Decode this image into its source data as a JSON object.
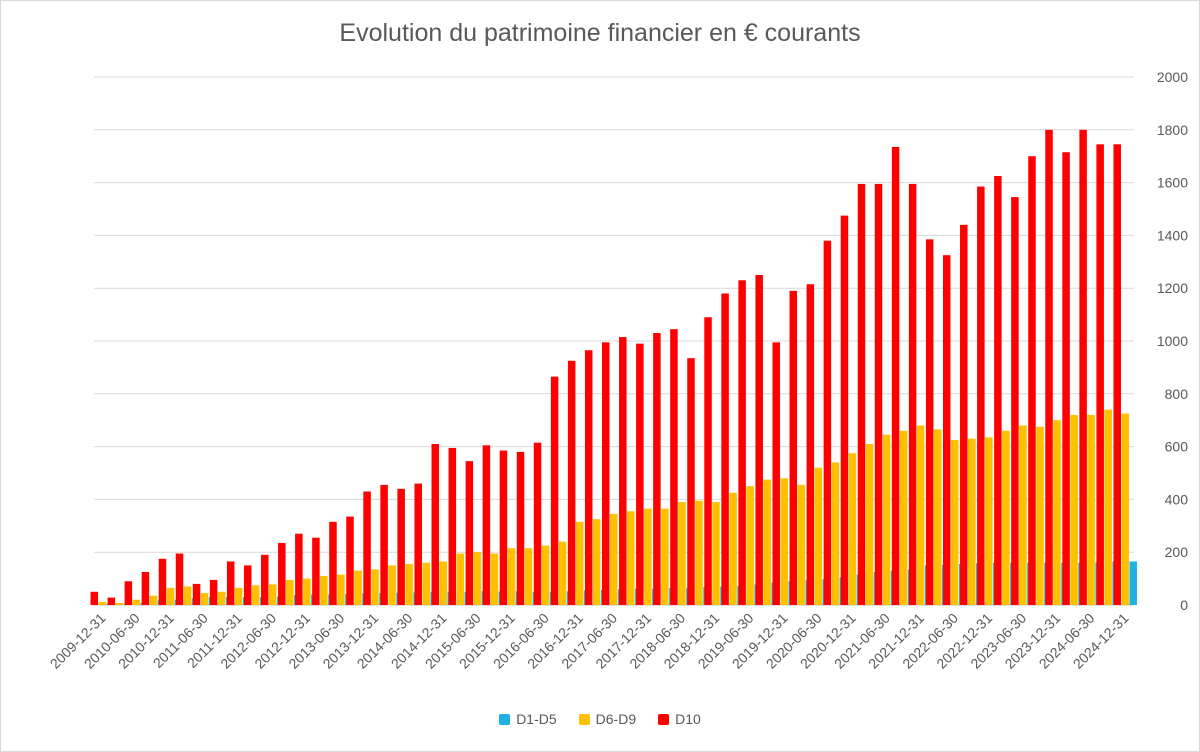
{
  "chart_data": {
    "type": "bar",
    "title": "Evolution du patrimoine financier en € courants",
    "xlabel": "",
    "ylabel": "",
    "ylim": [
      0,
      2000
    ],
    "yticks": [
      0,
      200,
      400,
      600,
      800,
      1000,
      1200,
      1400,
      1600,
      1800,
      2000
    ],
    "y_axis_side": "right",
    "grid": true,
    "legend_position": "bottom",
    "categories": [
      "2009-12-31",
      "2010-03-31",
      "2010-06-30",
      "2010-09-30",
      "2010-12-31",
      "2011-03-31",
      "2011-06-30",
      "2011-09-30",
      "2011-12-31",
      "2012-03-31",
      "2012-06-30",
      "2012-09-30",
      "2012-12-31",
      "2013-03-31",
      "2013-06-30",
      "2013-09-30",
      "2013-12-31",
      "2014-03-31",
      "2014-06-30",
      "2014-09-30",
      "2014-12-31",
      "2015-03-31",
      "2015-06-30",
      "2015-09-30",
      "2015-12-31",
      "2016-03-31",
      "2016-06-30",
      "2016-09-30",
      "2016-12-31",
      "2017-03-31",
      "2017-06-30",
      "2017-09-30",
      "2017-12-31",
      "2018-03-31",
      "2018-06-30",
      "2018-09-30",
      "2018-12-31",
      "2019-03-31",
      "2019-06-30",
      "2019-09-30",
      "2019-12-31",
      "2020-03-31",
      "2020-06-30",
      "2020-09-30",
      "2020-12-31",
      "2021-03-31",
      "2021-06-30",
      "2021-09-30",
      "2021-12-31",
      "2022-03-31",
      "2022-06-30",
      "2022-09-30",
      "2022-12-31",
      "2023-03-31",
      "2023-06-30",
      "2023-09-30",
      "2023-12-31",
      "2024-03-31",
      "2024-06-30",
      "2024-09-30",
      "2024-12-31"
    ],
    "label_every": 2,
    "series": [
      {
        "name": "D1-D5",
        "color": "#1fb1e6",
        "values": [
          5,
          3,
          8,
          18,
          20,
          25,
          30,
          30,
          30,
          30,
          32,
          38,
          40,
          40,
          42,
          45,
          46,
          47,
          48,
          50,
          50,
          50,
          52,
          51,
          52,
          50,
          50,
          52,
          55,
          58,
          60,
          62,
          62,
          64,
          65,
          68,
          70,
          72,
          78,
          85,
          90,
          94,
          98,
          105,
          115,
          125,
          130,
          135,
          150,
          152,
          155,
          158,
          160,
          160,
          160,
          160,
          160,
          160,
          162,
          165,
          165
        ]
      },
      {
        "name": "D6-D9",
        "color": "#ffc000",
        "values": [
          12,
          8,
          20,
          35,
          65,
          70,
          45,
          50,
          65,
          75,
          78,
          95,
          100,
          110,
          115,
          130,
          135,
          150,
          155,
          160,
          165,
          195,
          200,
          195,
          215,
          215,
          225,
          240,
          315,
          325,
          345,
          355,
          365,
          365,
          390,
          395,
          390,
          425,
          450,
          475,
          480,
          455,
          520,
          540,
          575,
          610,
          645,
          660,
          680,
          665,
          625,
          630,
          635,
          660,
          680,
          675,
          700,
          720,
          720,
          740,
          725
        ]
      },
      {
        "name": "D10",
        "color": "#ff0000",
        "values": [
          50,
          28,
          90,
          125,
          175,
          195,
          80,
          95,
          165,
          150,
          190,
          235,
          270,
          255,
          315,
          335,
          430,
          455,
          440,
          460,
          610,
          595,
          545,
          605,
          585,
          580,
          615,
          865,
          925,
          965,
          995,
          1015,
          990,
          1030,
          1045,
          935,
          1090,
          1180,
          1230,
          1250,
          995,
          1190,
          1215,
          1380,
          1475,
          1595,
          1595,
          1735,
          1595,
          1385,
          1325,
          1440,
          1585,
          1625,
          1545,
          1700,
          1800,
          1715,
          1800,
          1745,
          1745
        ]
      }
    ]
  }
}
